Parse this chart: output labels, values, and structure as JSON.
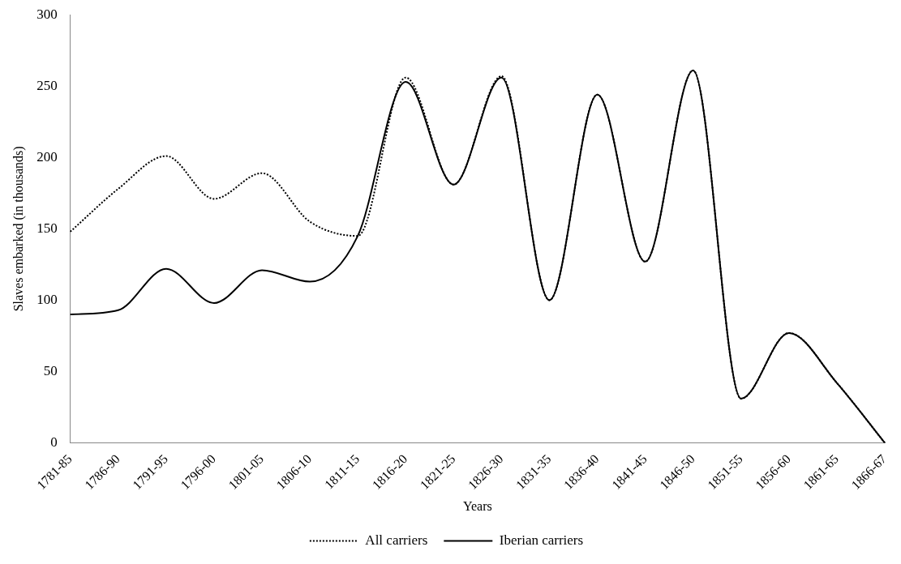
{
  "chart_data": {
    "type": "line",
    "xlabel": "Years",
    "ylabel": "Slaves embarked (in thousands)",
    "categories": [
      "1781-85",
      "1786-90",
      "1791-95",
      "1796-00",
      "1801-05",
      "1806-10",
      "1811-15",
      "1816-20",
      "1821-25",
      "1826-30",
      "1831-35",
      "1836-40",
      "1841-45",
      "1846-50",
      "1851-55",
      "1856-60",
      "1861-65",
      "1866-67"
    ],
    "series": [
      {
        "name": "All carriers",
        "color": "#000000",
        "line_style": "dotted",
        "values": [
          148,
          178,
          201,
          171,
          189,
          155,
          145,
          256,
          181,
          257,
          100,
          244,
          127,
          261,
          31,
          77,
          42,
          0
        ]
      },
      {
        "name": "Iberian carriers",
        "color": "#000000",
        "line_style": "solid",
        "values": [
          90,
          93,
          122,
          98,
          121,
          113,
          145,
          253,
          181,
          256,
          100,
          244,
          127,
          261,
          31,
          77,
          42,
          0
        ]
      }
    ],
    "ylim": [
      0,
      300
    ],
    "yticks": [
      0,
      50,
      100,
      150,
      200,
      250,
      300
    ],
    "grid": false,
    "legend": "bottom",
    "marker": "none"
  }
}
